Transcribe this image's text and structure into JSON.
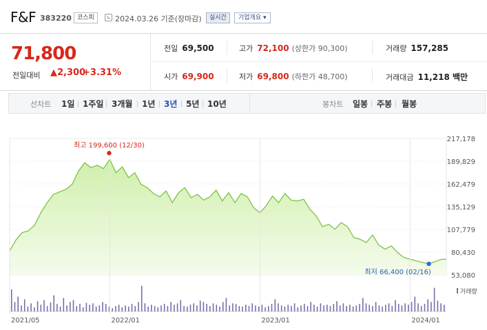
{
  "header": {
    "name": "F&F",
    "code": "383220",
    "market": "코스피",
    "date": "2024.03.26",
    "date_suffix": "기준(장마감)",
    "realtime_label": "실시간",
    "company_label": "기업개요",
    "company_caret": "▾"
  },
  "price": {
    "current": "71,800",
    "diff_label": "전일대비",
    "diff_arrow": "▲",
    "diff_value": "2,300",
    "diff_percent": "+3.31%"
  },
  "stats": {
    "prev_label": "전일",
    "prev_value": "69,500",
    "high_label": "고가",
    "high_value": "72,100",
    "upper_limit": "(상한가 90,300)",
    "volume_label": "거래량",
    "volume_value": "157,285",
    "open_label": "시가",
    "open_value": "69,900",
    "low_label": "저가",
    "low_value": "69,800",
    "lower_limit": "(하한가 48,700)",
    "amount_label": "거래대금",
    "amount_value": "11,218 백만"
  },
  "period": {
    "line_label": "선차트",
    "line_items": [
      "1일",
      "1주일",
      "3개월",
      "1년",
      "3년",
      "5년",
      "10년"
    ],
    "active": "3년",
    "candle_label": "봉차트",
    "candle_items": [
      "일봉",
      "주봉",
      "월봉"
    ]
  },
  "colors": {
    "accent_red": "#d6281b",
    "accent_blue": "#2a4fb0",
    "line_green": "#7dc242",
    "volume_purple": "#7b6aa8"
  },
  "chart_data": {
    "type": "area",
    "y_ticks": [
      "217,178",
      "189,829",
      "162,479",
      "135,129",
      "107,779",
      "80,430",
      "53,080"
    ],
    "ylim": [
      53080,
      217178
    ],
    "x_ticks": [
      {
        "label": "2021/05",
        "x": 0
      },
      {
        "label": "2022/01",
        "x": 8
      },
      {
        "label": "2023/01",
        "x": 20
      },
      {
        "label": "2024/01",
        "x": 32
      }
    ],
    "x_range": [
      0,
      34.9
    ],
    "max_label": "최고 199,600 (12/30)",
    "max_point": {
      "x": 7.95,
      "y": 199600
    },
    "min_label": "최저 66,400 (02/16)",
    "min_point": {
      "x": 33.5,
      "y": 66400
    },
    "volume_label": "거래량",
    "series": [
      {
        "x": [
          0,
          0.5,
          1,
          1.5,
          2,
          2.5,
          3,
          3.5,
          4,
          4.5,
          5,
          5.5,
          6,
          6.5,
          7,
          7.5,
          8,
          8.5,
          9,
          9.5,
          10,
          10.5,
          11,
          11.5,
          12,
          12.5,
          13,
          13.5,
          14,
          14.5,
          15,
          15.5,
          16,
          16.5,
          17,
          17.5,
          18,
          18.5,
          19,
          19.5,
          20,
          20.5,
          21,
          21.5,
          22,
          22.5,
          23,
          23.5,
          24,
          24.5,
          25,
          25.5,
          26,
          26.5,
          27,
          27.5,
          28,
          28.5,
          29,
          29.5,
          30,
          30.5,
          31,
          31.5,
          32,
          32.5,
          33,
          33.5,
          34,
          34.5,
          34.9
        ],
        "values": [
          82000,
          95000,
          104000,
          106000,
          113000,
          128000,
          140000,
          150000,
          153000,
          156000,
          162000,
          178000,
          188000,
          182000,
          185000,
          181000,
          192000,
          176000,
          183000,
          170000,
          176000,
          162000,
          158000,
          151000,
          147000,
          154000,
          140000,
          152000,
          158000,
          146000,
          150000,
          143000,
          147000,
          155000,
          142000,
          152000,
          140000,
          151000,
          147000,
          134000,
          128000,
          136000,
          148000,
          140000,
          151000,
          143000,
          142000,
          144000,
          132000,
          124000,
          111000,
          114000,
          108000,
          116000,
          111000,
          98000,
          96000,
          92000,
          101000,
          89000,
          84000,
          88000,
          80000,
          74000,
          72000,
          70000,
          68000,
          66400,
          69000,
          71800,
          71800
        ]
      }
    ],
    "volume": [
      0.82,
      0.35,
      0.55,
      0.22,
      0.45,
      0.18,
      0.3,
      0.15,
      0.38,
      0.25,
      0.42,
      0.2,
      0.33,
      0.6,
      0.28,
      0.18,
      0.5,
      0.22,
      0.35,
      0.42,
      0.2,
      0.28,
      0.15,
      0.32,
      0.25,
      0.3,
      0.18,
      0.22,
      0.35,
      0.28,
      0.18,
      0.12,
      0.2,
      0.25,
      0.15,
      0.22,
      0.18,
      0.28,
      0.2,
      0.35,
      0.95,
      0.3,
      0.18,
      0.25,
      0.2,
      0.15,
      0.22,
      0.28,
      0.2,
      0.35,
      0.25,
      0.3,
      0.42,
      0.2,
      0.18,
      0.25,
      0.3,
      0.22,
      0.4,
      0.35,
      0.28,
      0.2,
      0.3,
      0.25,
      0.18,
      0.35,
      0.5,
      0.22,
      0.3,
      0.28,
      0.2,
      0.18,
      0.25,
      0.2,
      0.3,
      0.22,
      0.18,
      0.25,
      0.15,
      0.2,
      0.28,
      0.45,
      0.3,
      0.22,
      0.18,
      0.25,
      0.2,
      0.3,
      0.15,
      0.22,
      0.28,
      0.2,
      0.35,
      0.25,
      0.18,
      0.3,
      0.22,
      0.25,
      0.2,
      0.28,
      0.38,
      0.22,
      0.3,
      0.2,
      0.25,
      0.18,
      0.22,
      0.28,
      0.5,
      0.3,
      0.25,
      0.2,
      0.35,
      0.22,
      0.18,
      0.25,
      0.3,
      0.2,
      0.42,
      0.28,
      0.22,
      0.3,
      0.25,
      0.35,
      0.55,
      0.3,
      0.2,
      0.28,
      0.45,
      0.35,
      0.88,
      0.4,
      0.3,
      0.25
    ]
  }
}
